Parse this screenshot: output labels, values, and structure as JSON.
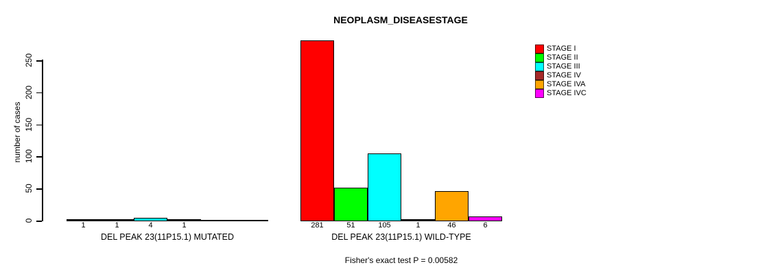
{
  "chart_data": {
    "type": "bar",
    "title": "NEOPLASM_DISEASESTAGE",
    "ylabel": "number of cases",
    "yticks": [
      0,
      50,
      100,
      150,
      200,
      250
    ],
    "ylim": [
      0,
      281
    ],
    "grid": false,
    "legend_position": "right",
    "categories": [
      "STAGE I",
      "STAGE II",
      "STAGE III",
      "STAGE IV",
      "STAGE IVA",
      "STAGE IVC"
    ],
    "colors": [
      "#ff0000",
      "#00ff00",
      "#00ffff",
      "#a52a2a",
      "#ffa500",
      "#ff00ff"
    ],
    "groups": [
      {
        "label": "DEL PEAK 23(11P15.1) MUTATED",
        "values": [
          1,
          1,
          4,
          1,
          null,
          null
        ]
      },
      {
        "label": "DEL PEAK 23(11P15.1) WILD-TYPE",
        "values": [
          281,
          51,
          105,
          1,
          46,
          6
        ]
      }
    ],
    "footnote": "Fisher's exact test P = 0.00582"
  }
}
